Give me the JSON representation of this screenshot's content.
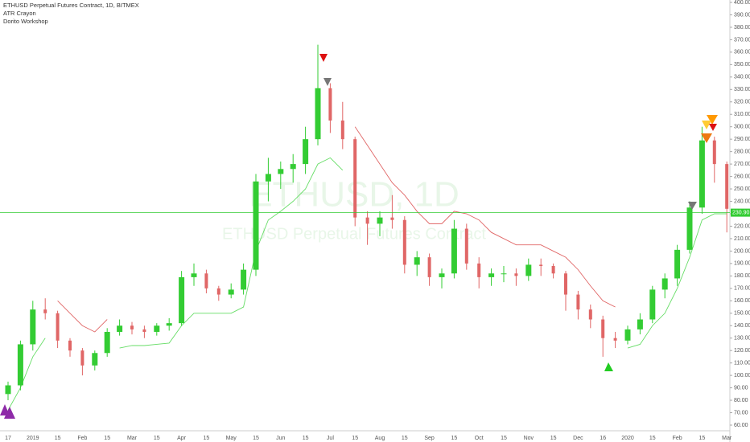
{
  "chart_data": {
    "type": "candlestick",
    "title": "ETHUSD Perpetual Futures Contract, 1D, BITMEX",
    "indicators": [
      "ATR Crayon",
      "Dorito Workshop"
    ],
    "watermark": "ETHUSD, 1D",
    "watermark_subtitle": "ETHUSD Perpetual Futures Contract",
    "categories": [
      "17",
      null,
      "2019",
      null,
      "15",
      null,
      "Feb",
      null,
      "15",
      null,
      "Mar",
      null,
      "15",
      null,
      "Apr",
      null,
      "15",
      null,
      "May",
      null,
      "15",
      null,
      "Jun",
      null,
      "15",
      null,
      "Jul",
      null,
      "15",
      null,
      "Aug",
      null,
      "15",
      null,
      "Sep",
      null,
      "15",
      null,
      "Oct",
      null,
      "15",
      null,
      "Nov",
      null,
      "15",
      null,
      "Dec",
      null,
      "16",
      null,
      "2020",
      null,
      "15",
      null,
      "Feb",
      null,
      "15",
      null,
      "Mar"
    ],
    "open": [
      85,
      92,
      125,
      153,
      150,
      128,
      120,
      108,
      118,
      135,
      140,
      137,
      135,
      140,
      142,
      179,
      182,
      170,
      165,
      169,
      185,
      256,
      262,
      266,
      270,
      290,
      331,
      305,
      290,
      227,
      222,
      227,
      225,
      189,
      195,
      179,
      182,
      218,
      190,
      179,
      182,
      182,
      180,
      189,
      188,
      182,
      165,
      153,
      145,
      130,
      128,
      137,
      145,
      169,
      178,
      201,
      235,
      289,
      270
    ],
    "high": [
      95,
      128,
      160,
      162,
      152,
      130,
      122,
      120,
      138,
      145,
      143,
      140,
      142,
      146,
      184,
      190,
      185,
      172,
      174,
      190,
      262,
      275,
      272,
      278,
      300,
      366,
      335,
      320,
      292,
      232,
      232,
      245,
      228,
      200,
      198,
      186,
      225,
      222,
      195,
      186,
      188,
      186,
      194,
      194,
      190,
      184,
      168,
      157,
      148,
      135,
      140,
      150,
      172,
      182,
      205,
      240,
      300,
      292,
      272
    ],
    "low": [
      80,
      88,
      120,
      145,
      122,
      115,
      100,
      104,
      115,
      132,
      133,
      130,
      132,
      136,
      140,
      172,
      166,
      160,
      162,
      165,
      180,
      240,
      250,
      255,
      262,
      285,
      295,
      282,
      220,
      205,
      212,
      218,
      182,
      180,
      172,
      170,
      178,
      185,
      170,
      172,
      175,
      172,
      176,
      180,
      178,
      152,
      145,
      138,
      115,
      122,
      125,
      133,
      142,
      162,
      172,
      198,
      230,
      255,
      215
    ],
    "close": [
      92,
      125,
      153,
      150,
      128,
      120,
      108,
      118,
      135,
      140,
      137,
      135,
      140,
      142,
      179,
      182,
      170,
      165,
      169,
      185,
      256,
      262,
      266,
      270,
      290,
      331,
      305,
      290,
      227,
      222,
      227,
      225,
      189,
      195,
      179,
      182,
      218,
      190,
      179,
      182,
      182,
      180,
      189,
      188,
      182,
      165,
      153,
      145,
      130,
      128,
      137,
      145,
      169,
      178,
      201,
      235,
      289,
      270,
      234
    ],
    "up_color": "#33cc33",
    "down_color": "#e06666",
    "series": [
      {
        "name": "ATR Crayon upper",
        "color": "#e06666",
        "values": [
          null,
          null,
          null,
          null,
          160,
          150,
          140,
          135,
          145,
          null,
          null,
          null,
          null,
          null,
          null,
          null,
          null,
          null,
          null,
          null,
          null,
          null,
          null,
          null,
          null,
          null,
          null,
          null,
          300,
          285,
          270,
          255,
          245,
          232,
          222,
          222,
          232,
          230,
          225,
          215,
          210,
          205,
          205,
          205,
          200,
          195,
          185,
          172,
          160,
          155,
          null,
          null,
          null,
          null,
          null,
          null,
          null,
          null,
          null
        ]
      },
      {
        "name": "ATR Crayon lower",
        "color": "#66dd66",
        "values": [
          72,
          90,
          115,
          130,
          null,
          null,
          null,
          null,
          null,
          122,
          124,
          124,
          125,
          126,
          140,
          150,
          150,
          150,
          150,
          155,
          200,
          225,
          232,
          240,
          250,
          270,
          275,
          265,
          null,
          null,
          null,
          null,
          null,
          null,
          null,
          null,
          null,
          null,
          null,
          null,
          null,
          null,
          null,
          null,
          null,
          null,
          null,
          null,
          null,
          null,
          122,
          125,
          140,
          150,
          170,
          195,
          225,
          230,
          230
        ]
      }
    ],
    "last_price": 230.9,
    "last_price_label": "230.90",
    "last_price_color": "#33cc33",
    "ylim": [
      60,
      400
    ],
    "yticks": [
      {
        "value": 60,
        "label": "60.00"
      },
      {
        "value": 70,
        "label": "70.00"
      },
      {
        "value": 80,
        "label": "80.00"
      },
      {
        "value": 90,
        "label": "90.00"
      },
      {
        "value": 100,
        "label": "100.00"
      },
      {
        "value": 110,
        "label": "110.00"
      },
      {
        "value": 120,
        "label": "120.00"
      },
      {
        "value": 130,
        "label": "130.00"
      },
      {
        "value": 140,
        "label": "140.00"
      },
      {
        "value": 150,
        "label": "150.00"
      },
      {
        "value": 160,
        "label": "160.00"
      },
      {
        "value": 170,
        "label": "170.00"
      },
      {
        "value": 180,
        "label": "180.00"
      },
      {
        "value": 190,
        "label": "190.00"
      },
      {
        "value": 200,
        "label": "200.00"
      },
      {
        "value": 210,
        "label": "210.00"
      },
      {
        "value": 220,
        "label": "220.00"
      },
      {
        "value": 230,
        "label": "230.00"
      },
      {
        "value": 240,
        "label": "240.00"
      },
      {
        "value": 250,
        "label": "250.00"
      },
      {
        "value": 260,
        "label": "260.00"
      },
      {
        "value": 270,
        "label": "270.00"
      },
      {
        "value": 280,
        "label": "280.00"
      },
      {
        "value": 290,
        "label": "290.00"
      },
      {
        "value": 300,
        "label": "300.00"
      },
      {
        "value": 310,
        "label": "310.00"
      },
      {
        "value": 320,
        "label": "320.00"
      },
      {
        "value": 330,
        "label": "330.00"
      },
      {
        "value": 340,
        "label": "340.00"
      },
      {
        "value": 350,
        "label": "350.00"
      },
      {
        "value": 360,
        "label": "360.00"
      },
      {
        "value": 370,
        "label": "370.00"
      },
      {
        "value": 380,
        "label": "380.00"
      },
      {
        "value": 390,
        "label": "390.00"
      },
      {
        "value": 400,
        "label": "400.00"
      }
    ]
  }
}
